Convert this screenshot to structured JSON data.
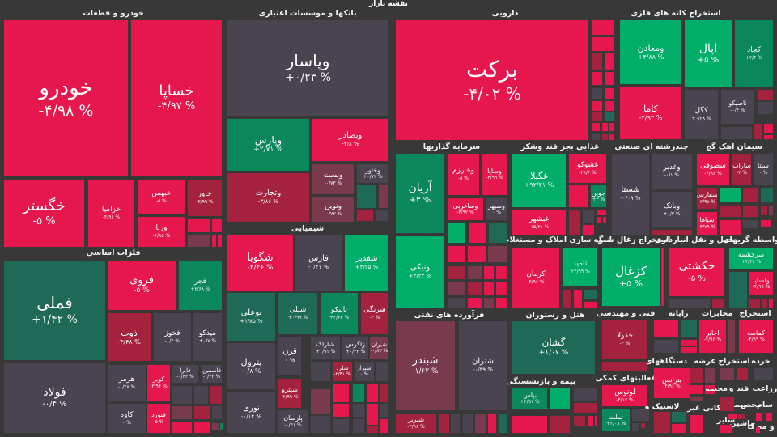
{
  "title": "نقشه بازار",
  "palette": {
    "R": "#e5174d",
    "D": "#a5223f",
    "M": "#7a3a4e",
    "G": "#4a4450",
    "K": "#1f6a56",
    "N": "#0a875b",
    "B": "#00ad69"
  },
  "chart_data": {
    "type": "heatmap",
    "subtype": "treemap",
    "title": "نقشه بازار",
    "sectors": [
      {
        "name": "خودرو و قطعات",
        "stocks": [
          {
            "s": "خودرو",
            "c": "-۴/۹۸ %",
            "v": -4.98
          },
          {
            "s": "خساپا",
            "c": "-۴/۹۷ %",
            "v": -4.97
          },
          {
            "s": "خگستر",
            "c": "-۵ %",
            "v": -5
          },
          {
            "s": "خزامیا",
            "c": "-۴/۹۶ %",
            "v": -4.96
          },
          {
            "s": "خبهمن",
            "c": "-۵ %",
            "v": -5
          },
          {
            "s": "ورنا",
            "c": "-۴/۸۵ %",
            "v": -4.85
          },
          {
            "s": "خاور",
            "c": "-۳/۹۹ %",
            "v": -3.99
          }
        ]
      },
      {
        "name": "بانکها و موسسات اعتباری",
        "stocks": [
          {
            "s": "وپاسار",
            "c": "+۰/۲۳ %",
            "v": 0.23
          },
          {
            "s": "وپارس",
            "c": "+۲/۷۱ %",
            "v": 2.71
          },
          {
            "s": "وبصادر",
            "c": "-۴/۸ %",
            "v": -4.8
          },
          {
            "s": "وتجارت",
            "c": "-۳/۸۶ %",
            "v": -3.86
          },
          {
            "s": "وبست",
            "c": "-۰/۷۳ %",
            "v": -0.73
          },
          {
            "s": "ونوین",
            "c": "-۰/۷۳ %",
            "v": -0.73
          },
          {
            "s": "وخاور",
            "c": "+۰/۷۲ %",
            "v": 0.72
          }
        ]
      },
      {
        "name": "شیمیایی",
        "stocks": [
          {
            "s": "شگویا",
            "c": "-۴/۴۶ %",
            "v": -4.46
          },
          {
            "s": "فارس",
            "c": "-۰/۴۱ %",
            "v": -0.41
          },
          {
            "s": "شفدیر",
            "c": "+۴/۲۵ %",
            "v": 4.25
          },
          {
            "s": "بوعلی",
            "c": "+۱/۸۵ %",
            "v": 1.85
          },
          {
            "s": "شپلی",
            "c": "+۰/۹۹ %",
            "v": 0.99
          },
          {
            "s": "تاپیکو",
            "c": "+۲/۴۴ %",
            "v": 2.44
          },
          {
            "s": "شرنگی",
            "c": "-۳ %",
            "v": -3
          },
          {
            "s": "پترول",
            "c": "-۰/۸ %",
            "v": -0.8
          },
          {
            "s": "نوری",
            "c": "-۰/۱۴ %",
            "v": -0.14
          },
          {
            "s": "قرن",
            "c": "۰ %",
            "v": 0
          },
          {
            "s": "شاراک",
            "c": "+۰/۹۱ %",
            "v": 0.91
          },
          {
            "s": "زاگرس",
            "c": "+۰/۳۲ %",
            "v": 0.32
          },
          {
            "s": "شیران",
            "c": "-۰/۸۷ %",
            "v": -0.87
          },
          {
            "s": "شپترو",
            "c": "-۲/۹۹ %",
            "v": -2.99
          },
          {
            "s": "پارسان",
            "c": "-۰/۴۱ %",
            "v": -0.41
          },
          {
            "s": "شلرد",
            "c": "-۲/۴۱ %",
            "v": -2.41
          },
          {
            "s": "شیراز",
            "c": "۰ %",
            "v": 0
          }
        ]
      },
      {
        "name": "فلزات اساسی",
        "stocks": [
          {
            "s": "فملی",
            "c": "+۱/۴۲ %",
            "v": 1.42
          },
          {
            "s": "فولاد",
            "c": "-۰/۴ %",
            "v": -0.4
          },
          {
            "s": "فروی",
            "c": "-۵ %",
            "v": -5
          },
          {
            "s": "فجر",
            "c": "+۲/۶۸ %",
            "v": 2.68
          },
          {
            "s": "ذوب",
            "c": "-۳/۴۸ %",
            "v": -3.48
          },
          {
            "s": "فخوز",
            "c": "-۰/۴ %",
            "v": -0.4
          },
          {
            "s": "میدکو",
            "c": "+۰/۷ %",
            "v": 0.7
          },
          {
            "s": "هرمز",
            "c": "-۰/۲۷ %",
            "v": -0.27
          },
          {
            "s": "کاوه",
            "c": "۰ %",
            "v": 0
          },
          {
            "s": "کویر",
            "c": "-۳/۹۶ %",
            "v": -3.96
          },
          {
            "s": "فنورد",
            "c": "-۵ %",
            "v": -5
          },
          {
            "s": "فایرا",
            "c": "-۰/۴۴ %",
            "v": -0.44
          },
          {
            "s": "فاسمین",
            "c": "-۰/۳۲ %",
            "v": -0.32
          }
        ]
      },
      {
        "name": "دارویی",
        "stocks": [
          {
            "s": "برکت",
            "c": "-۴/۰۲ %",
            "v": -4.02
          }
        ]
      },
      {
        "name": "استخراج کانه های فلزی",
        "stocks": [
          {
            "s": "ومعادن",
            "c": "+۴/۸۸ %",
            "v": 4.88
          },
          {
            "s": "اپال",
            "c": "+۵ %",
            "v": 5
          },
          {
            "s": "کچاد",
            "c": "+۳/۴ %",
            "v": 3.4
          },
          {
            "s": "کاما",
            "c": "-۴/۹۳ %",
            "v": -4.93
          },
          {
            "s": "کگل",
            "c": "+۰/۲۸ %",
            "v": 0.28
          },
          {
            "s": "ناصیکو",
            "c": "-۰/۴ %",
            "v": -0.4
          }
        ]
      },
      {
        "name": "سرمایه گذاریها",
        "stocks": [
          {
            "s": "آریان",
            "c": "+۳ %",
            "v": 3
          },
          {
            "s": "وخارزم",
            "c": "-۵ %",
            "v": -5
          },
          {
            "s": "وساپا",
            "c": "-۴/۹۹ %",
            "v": -4.99
          },
          {
            "s": "وساغربی",
            "c": "-۴/۹۲ %",
            "v": -4.92
          },
          {
            "s": "وسپهر",
            "c": "۰ %",
            "v": 0
          },
          {
            "s": "ونیکی",
            "c": "+۴/۲۳ %",
            "v": 4.23
          }
        ]
      },
      {
        "name": "غذایی بجز قند وشکر",
        "stocks": [
          {
            "s": "غگیلا",
            "c": "+۹۲/۲۱ %",
            "v": 92.21
          },
          {
            "s": "غشوکو",
            "c": "-۲۸/۴ %",
            "v": -28.4
          },
          {
            "s": "جوین",
            "c": "+۳ %",
            "v": 3
          },
          {
            "s": "غبشهر",
            "c": "-۱۵/۳۱ %",
            "v": -15.31
          }
        ]
      },
      {
        "name": "چندرشته ای صنعتی",
        "stocks": [
          {
            "s": "شستا",
            "c": "-۰/۰۹ %",
            "v": -0.09
          },
          {
            "s": "وغدیر",
            "c": "-۰/۱ %",
            "v": -0.1
          },
          {
            "s": "وبانک",
            "c": "+۰/۳ %",
            "v": 0.3
          }
        ]
      },
      {
        "name": "سیمان آهک گچ",
        "stocks": [
          {
            "s": "سصوفی",
            "c": "-۴/۹۶ %",
            "v": -4.96
          },
          {
            "s": "ساراب",
            "c": "-۳ %",
            "v": -3
          },
          {
            "s": "سیتا",
            "c": "۰ %",
            "v": 0
          },
          {
            "s": "سفارس",
            "c": "-۲/۹۸ %",
            "v": -2.98
          },
          {
            "s": "سپاها",
            "c": "-۴/۷۹ %",
            "v": -4.79
          }
        ]
      },
      {
        "name": "انبوه سازی املاک و مستغلات",
        "stocks": [
          {
            "s": "کرمان",
            "c": "-۴/۹۶ %",
            "v": -4.96
          },
          {
            "s": "ثامید",
            "c": "+۴/۹۹ %",
            "v": 4.99
          }
        ]
      },
      {
        "name": "استخراج زغال سنگ",
        "stocks": [
          {
            "s": "کزغال",
            "c": "+۵ %",
            "v": 5
          }
        ]
      },
      {
        "name": "حمل و نقل انبارداری",
        "stocks": [
          {
            "s": "حکشتی",
            "c": "-۵ %",
            "v": -5
          }
        ]
      },
      {
        "name": "واسطه گریهای",
        "stocks": [
          {
            "s": "سرچشمه",
            "c": "+۴/۳۶ %",
            "v": 4.36
          },
          {
            "s": "ولساپا",
            "c": "-۴/۹۹ %",
            "v": -4.99
          }
        ]
      },
      {
        "name": "فرآورده های نفتی",
        "stocks": [
          {
            "s": "شبندر",
            "c": "-۱/۶۲ %",
            "v": -1.62
          },
          {
            "s": "شتران",
            "c": "-۰/۳۹ %",
            "v": -0.39
          },
          {
            "s": "شبریز",
            "c": "-۳/۹۶ %",
            "v": -3.96
          }
        ]
      },
      {
        "name": "هتل و رستوران",
        "stocks": [
          {
            "s": "گشان",
            "c": "+۱/۰۷ %",
            "v": 1.07
          }
        ]
      },
      {
        "name": "بیمه و بازنشستگی",
        "stocks": [
          {
            "s": "بپاس",
            "c": "+۲/۵۱ %",
            "v": 2.51
          }
        ]
      },
      {
        "name": "فنی و مهندسی",
        "stocks": [
          {
            "s": "خفولا",
            "c": "-۳ %",
            "v": -3
          }
        ]
      },
      {
        "name": "فعالیتهای کمکی",
        "stocks": [
          {
            "s": "لوتوس",
            "c": "-۴/۱۲ %",
            "v": -4.12
          },
          {
            "s": "تملت",
            "c": "+۲/۰۸ %",
            "v": 2.08
          }
        ]
      },
      {
        "name": "رایانه",
        "stocks": []
      },
      {
        "name": "مخابرات",
        "stocks": [
          {
            "s": "اخابر",
            "c": "-۴/۹۶ %",
            "v": -4.96
          }
        ]
      },
      {
        "name": "استخراج",
        "stocks": [
          {
            "s": "کماسه",
            "c": "-۴/۹۹ %",
            "v": -4.99
          }
        ]
      },
      {
        "name": "دستگاههای",
        "stocks": [
          {
            "s": "بترانس",
            "c": "-۴/۹۶ %",
            "v": -4.96
          }
        ]
      },
      {
        "name": "عرضه",
        "stocks": []
      },
      {
        "name": "استخراج",
        "stocks": []
      },
      {
        "name": "خرده",
        "stocks": []
      },
      {
        "name": "قند و",
        "stocks": []
      },
      {
        "name": "محصو",
        "stocks": []
      },
      {
        "name": "زراعت",
        "stocks": []
      },
      {
        "name": "لاستیک و",
        "stocks": []
      },
      {
        "name": "کانی غیر",
        "stocks": []
      },
      {
        "name": "سایر",
        "stocks": []
      },
      {
        "name": "ماشین",
        "stocks": []
      },
      {
        "name": "سام",
        "stocks": []
      },
      {
        "name": "محص",
        "stocks": []
      },
      {
        "name": "پیمان",
        "stocks": []
      },
      {
        "name": "و مه کا",
        "stocks": []
      }
    ]
  }
}
